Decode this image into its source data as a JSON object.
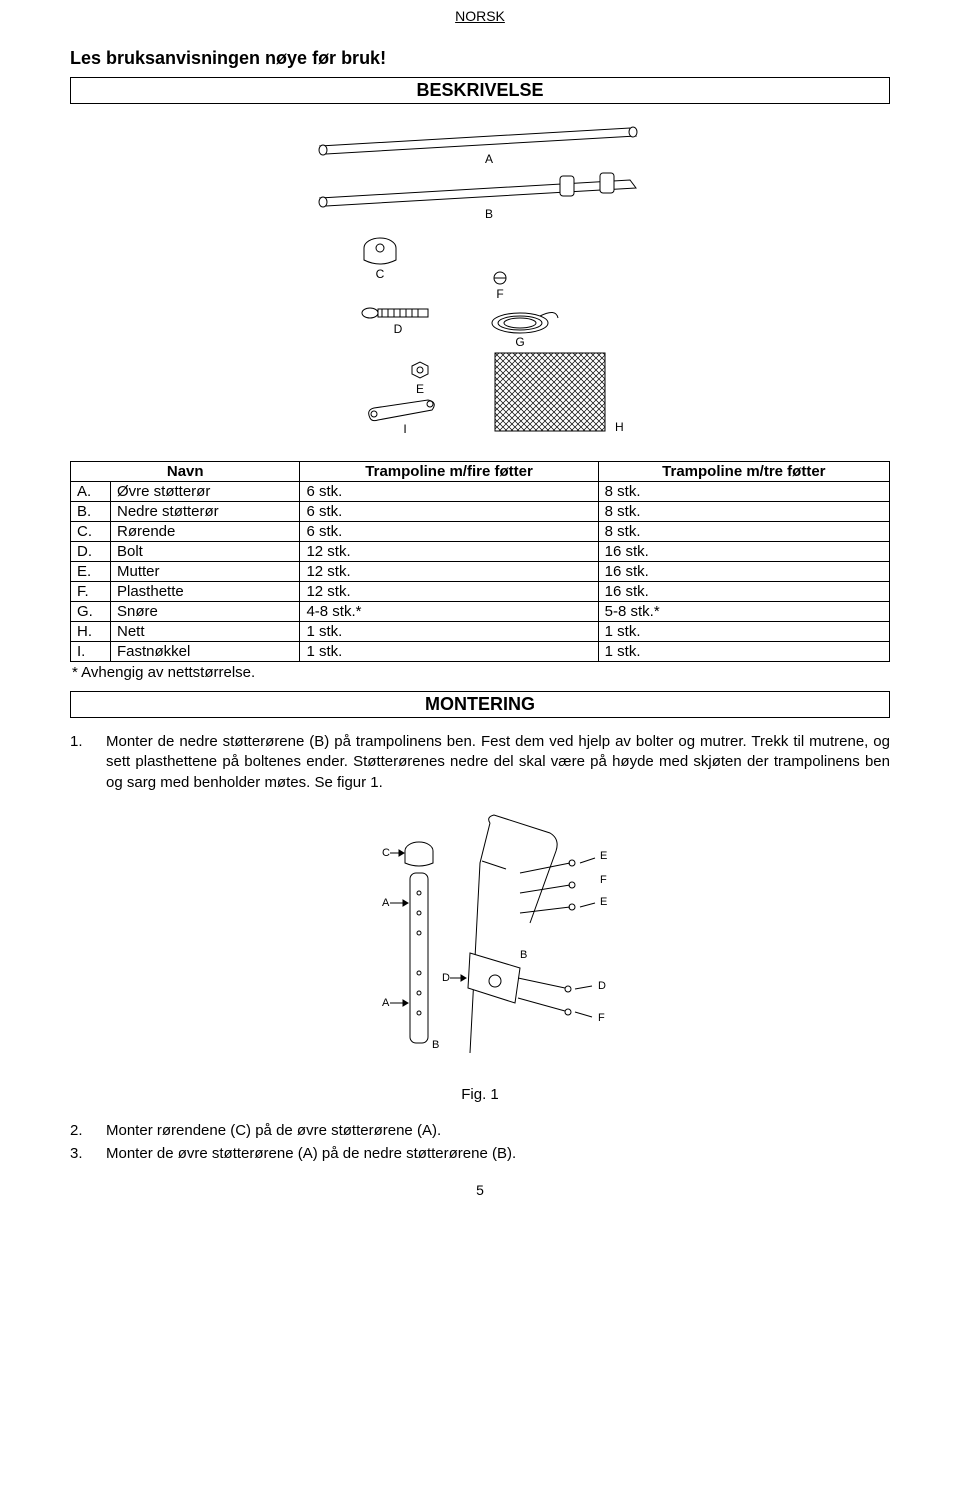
{
  "header": {
    "language": "NORSK",
    "warning": "Les bruksanvisningen nøye før bruk!",
    "section1": "BESKRIVELSE",
    "section2": "MONTERING"
  },
  "diagram": {
    "labels": {
      "A": "A",
      "B": "B",
      "C": "C",
      "D": "D",
      "E": "E",
      "F": "F",
      "G": "G",
      "H": "H",
      "I": "I"
    },
    "callouts": {
      "A": "A",
      "B": "B",
      "C": "C",
      "D": "D",
      "E": "E",
      "F": "F"
    },
    "colors": {
      "stroke": "#000000",
      "fill": "#ffffff",
      "hatch": "#000000"
    }
  },
  "parts_table": {
    "columns": [
      "Navn",
      "Trampoline m/fire føtter",
      "Trampoline m/tre føtter"
    ],
    "rows": [
      {
        "letter": "A.",
        "name": "Øvre støtterør",
        "q1": "6 stk.",
        "q2": "8 stk."
      },
      {
        "letter": "B.",
        "name": "Nedre støtterør",
        "q1": "6 stk.",
        "q2": "8 stk."
      },
      {
        "letter": "C.",
        "name": "Rørende",
        "q1": "6 stk.",
        "q2": "8 stk."
      },
      {
        "letter": "D.",
        "name": "Bolt",
        "q1": "12 stk.",
        "q2": "16 stk."
      },
      {
        "letter": "E.",
        "name": "Mutter",
        "q1": "12 stk.",
        "q2": "16 stk."
      },
      {
        "letter": "F.",
        "name": "Plasthette",
        "q1": "12 stk.",
        "q2": "16 stk."
      },
      {
        "letter": "G.",
        "name": "Snøre",
        "q1": "4-8 stk.*",
        "q2": "5-8 stk.*"
      },
      {
        "letter": "H.",
        "name": "Nett",
        "q1": "1 stk.",
        "q2": "1 stk."
      },
      {
        "letter": "I.",
        "name": "Fastnøkkel",
        "q1": "1 stk.",
        "q2": "1 stk."
      }
    ],
    "footnote": "* Avhengig av nettstørrelse."
  },
  "steps": [
    {
      "num": "1.",
      "text": "Monter de nedre støtterørene (B) på trampolinens ben. Fest dem ved hjelp av bolter og mutrer. Trekk til mutrene, og sett plasthettene på boltenes ender. Støtterørenes nedre del skal være på høyde med skjøten der trampolinens ben og sarg med benholder møtes. Se figur 1."
    },
    {
      "num": "2.",
      "text": "Monter rørendene (C)  på de øvre støtterørene (A)."
    },
    {
      "num": "3.",
      "text": "Monter de øvre støtterørene (A) på de nedre støtterørene (B)."
    }
  ],
  "figure_caption": "Fig. 1",
  "page_number": "5",
  "style": {
    "body_font": "Arial",
    "body_fontsize_pt": 11,
    "heading_fontsize_pt": 14,
    "text_color": "#000000",
    "border_color": "#000000",
    "background": "#ffffff"
  }
}
